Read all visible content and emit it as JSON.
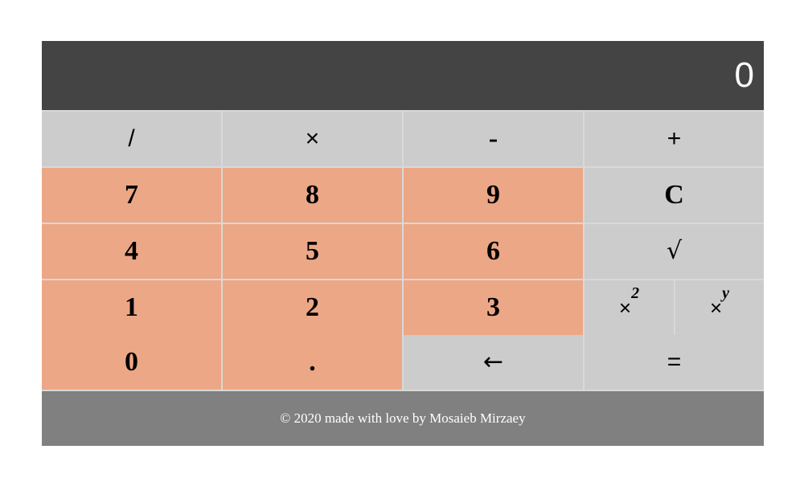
{
  "display": {
    "value": "0"
  },
  "keys": {
    "divide": "/",
    "multiply": "×",
    "subtract": "-",
    "add": "+",
    "seven": "7",
    "eight": "8",
    "nine": "9",
    "clear": "C",
    "four": "4",
    "five": "5",
    "six": "6",
    "sqrt": "√",
    "one": "1",
    "two": "2",
    "three": "3",
    "square_base": "×",
    "square_exp": "2",
    "power_base": "×",
    "power_exp": "y",
    "zero": "0",
    "decimal": ".",
    "backspace": "←",
    "equals": "="
  },
  "footer": {
    "text": "© 2020 made with love by Mosaieb Mirzaey"
  },
  "colors": {
    "display_bg": "#444444",
    "digit_key_bg": "#eca786",
    "operator_key_bg": "#cccccc",
    "footer_bg": "#808080",
    "grid_lines": "#d9d9d9"
  }
}
